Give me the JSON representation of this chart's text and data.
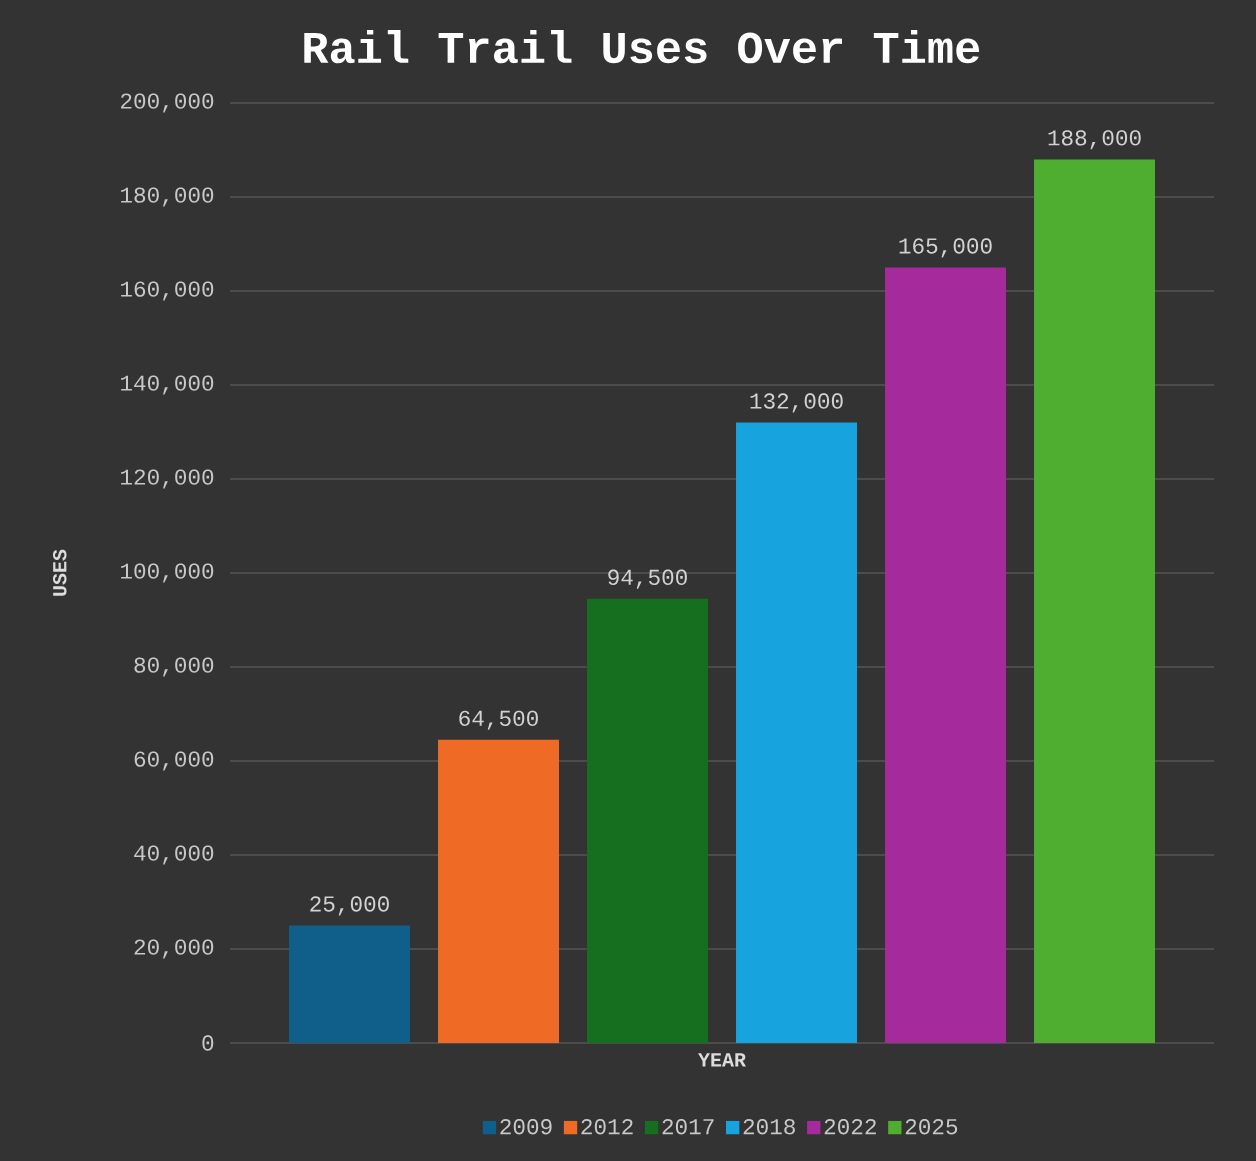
{
  "chart_data": {
    "type": "bar",
    "title": "Rail Trail Uses Over Time",
    "xlabel": "YEAR",
    "ylabel": "USES",
    "categories": [
      null
    ],
    "series": [
      {
        "name": "2009",
        "color": "#0f5f8a",
        "values": [
          25000
        ],
        "value_labels": [
          "25,000"
        ]
      },
      {
        "name": "2012",
        "color": "#ee6a25",
        "values": [
          64500
        ],
        "value_labels": [
          "64,500"
        ]
      },
      {
        "name": "2017",
        "color": "#166f1e",
        "values": [
          94500
        ],
        "value_labels": [
          "94,500"
        ]
      },
      {
        "name": "2018",
        "color": "#16a3de",
        "values": [
          132000
        ],
        "value_labels": [
          "132,000"
        ]
      },
      {
        "name": "2022",
        "color": "#a52a9c",
        "values": [
          165000
        ],
        "value_labels": [
          "165,000"
        ]
      },
      {
        "name": "2025",
        "color": "#4fad30",
        "values": [
          188000
        ],
        "value_labels": [
          "188,000"
        ]
      }
    ],
    "ylim": [
      0,
      200000
    ],
    "yticks": [
      {
        "value": 0,
        "label": "0"
      },
      {
        "value": 20000,
        "label": "20,000"
      },
      {
        "value": 40000,
        "label": "40,000"
      },
      {
        "value": 60000,
        "label": "60,000"
      },
      {
        "value": 80000,
        "label": "80,000"
      },
      {
        "value": 100000,
        "label": "100,000"
      },
      {
        "value": 120000,
        "label": "120,000"
      },
      {
        "value": 140000,
        "label": "140,000"
      },
      {
        "value": 160000,
        "label": "160,000"
      },
      {
        "value": 180000,
        "label": "180,000"
      },
      {
        "value": 200000,
        "label": "200,000"
      }
    ],
    "grid": "y",
    "legend": "bottom"
  }
}
